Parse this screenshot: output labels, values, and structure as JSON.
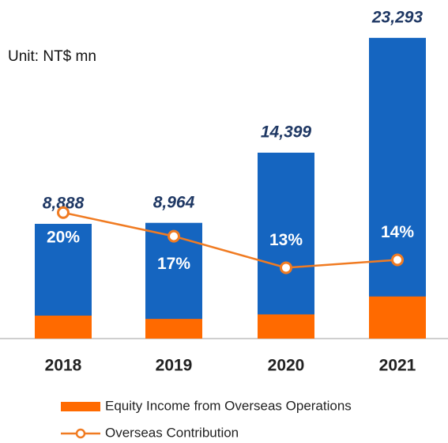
{
  "chart_data": {
    "type": "bar",
    "subtitle": "Unit: NT$ mn",
    "categories": [
      "2018",
      "2019",
      "2020",
      "2021"
    ],
    "series": [
      {
        "color": "#1565c0",
        "values": [
          8888,
          8964,
          14399,
          23293
        ],
        "value_labels": [
          "8,888",
          "8,964",
          "14,399",
          "23,293"
        ]
      },
      {
        "name": "Equity Income from Overseas Operations",
        "color": "#ff6a00",
        "values": [
          1778,
          1524,
          1872,
          3261
        ]
      },
      {
        "name": "Overseas Contribution",
        "type": "line",
        "axis": "y2",
        "color": "#f07b22",
        "values": [
          20,
          17,
          13,
          14
        ],
        "value_labels": [
          "20%",
          "17%",
          "13%",
          "14%"
        ]
      }
    ],
    "ylim": [
      0,
      25000
    ],
    "y2lim": [
      4,
      45
    ]
  }
}
